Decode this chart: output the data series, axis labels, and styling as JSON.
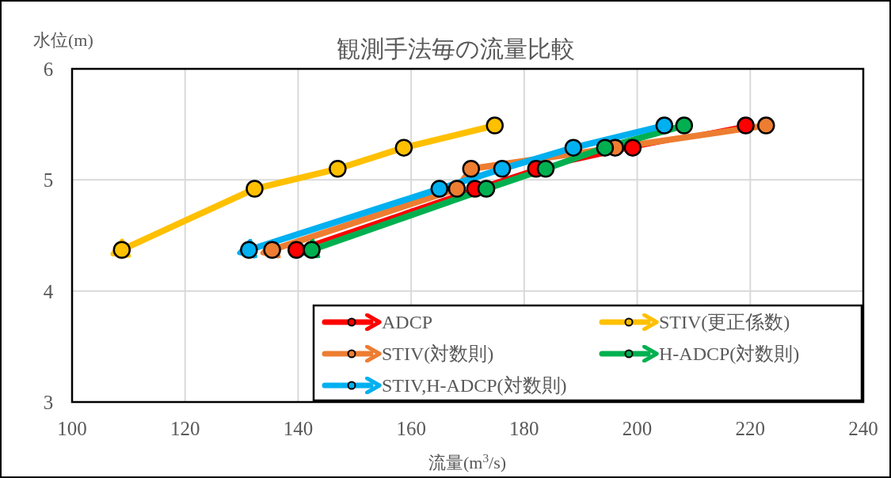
{
  "chart_data": {
    "type": "line",
    "title": "観測手法毎の流量比較",
    "xlabel": "流量(m$^{3}$/s)",
    "ylabel": "水位(m)",
    "xlim": [
      100,
      240
    ],
    "xticks": [
      100,
      120,
      140,
      160,
      180,
      200,
      220,
      240
    ],
    "ylim": [
      3,
      6
    ],
    "yticks": [
      3,
      4,
      5,
      6
    ],
    "grid": true,
    "legend": "bottom right",
    "marker": "circle",
    "series": [
      {
        "name": "ADCP",
        "color": "#ff0000",
        "x": [
          219.2,
          199.2,
          182.1,
          171.3,
          139.7
        ],
        "values": [
          5.49,
          5.29,
          5.1,
          4.92,
          4.37
        ]
      },
      {
        "name": "STIV(更正係数)",
        "color": "#ffc000",
        "x": [
          174.8,
          158.7,
          147.0,
          132.3,
          108.8
        ],
        "values": [
          5.49,
          5.29,
          5.1,
          4.92,
          4.37
        ]
      },
      {
        "name": "STIV(対数則)",
        "color": "#ed7d31",
        "x": [
          222.8,
          196.1,
          170.6,
          168.1,
          135.4
        ],
        "values": [
          5.49,
          5.29,
          5.1,
          4.92,
          4.37
        ]
      },
      {
        "name": "H-ADCP(対数則)",
        "color": "#00b050",
        "x": [
          208.3,
          194.3,
          183.8,
          173.3,
          142.4
        ],
        "values": [
          5.49,
          5.29,
          5.1,
          4.92,
          4.37
        ]
      },
      {
        "name": "STIV,H-ADCP(対数則)",
        "color": "#00b0f0",
        "x": [
          204.8,
          188.7,
          176.1,
          165.0,
          131.3
        ],
        "values": [
          5.49,
          5.29,
          5.1,
          4.92,
          4.37
        ]
      }
    ]
  }
}
